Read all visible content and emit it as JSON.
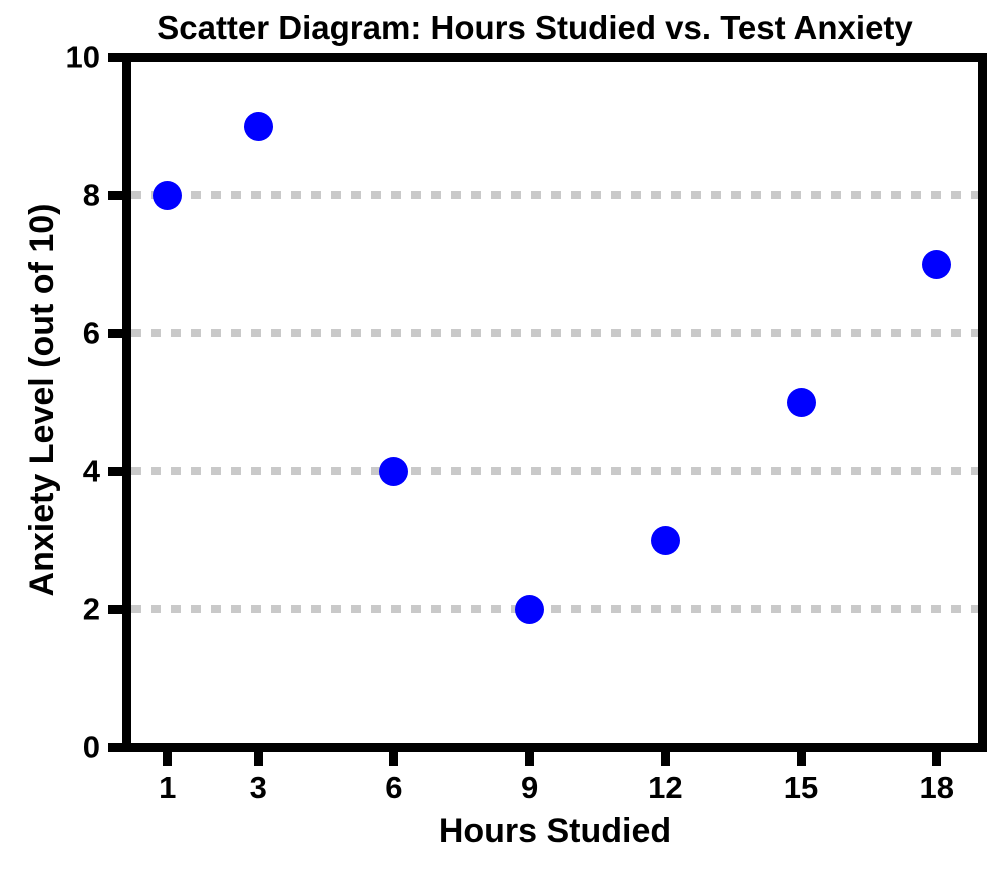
{
  "chart_data": {
    "type": "scatter",
    "title": "Scatter Diagram: Hours Studied vs. Test Anxiety",
    "xlabel": "Hours Studied",
    "ylabel": "Anxiety Level (out of 10)",
    "x": [
      1,
      3,
      6,
      9,
      12,
      15,
      18
    ],
    "y": [
      8,
      9,
      4,
      2,
      3,
      5,
      7
    ],
    "xticks": [
      "1",
      "3",
      "6",
      "9",
      "12",
      "15",
      "18"
    ],
    "xtick_values": [
      1,
      3,
      6,
      9,
      12,
      15,
      18
    ],
    "yticks": [
      "0",
      "2",
      "4",
      "6",
      "8",
      "10"
    ],
    "ytick_values": [
      0,
      2,
      4,
      6,
      8,
      10
    ],
    "xlim": [
      0.1,
      19.0
    ],
    "ylim": [
      0,
      10
    ],
    "gridlines_y": [
      2,
      4,
      6,
      8
    ],
    "grid_style": "dashed",
    "grid_on": true,
    "legend_position": "none",
    "colors": {
      "marker": "#0000FF",
      "grid": "#C9C9C9",
      "axis": "#000000",
      "background": "#FFFFFF",
      "text": "#000000"
    }
  }
}
